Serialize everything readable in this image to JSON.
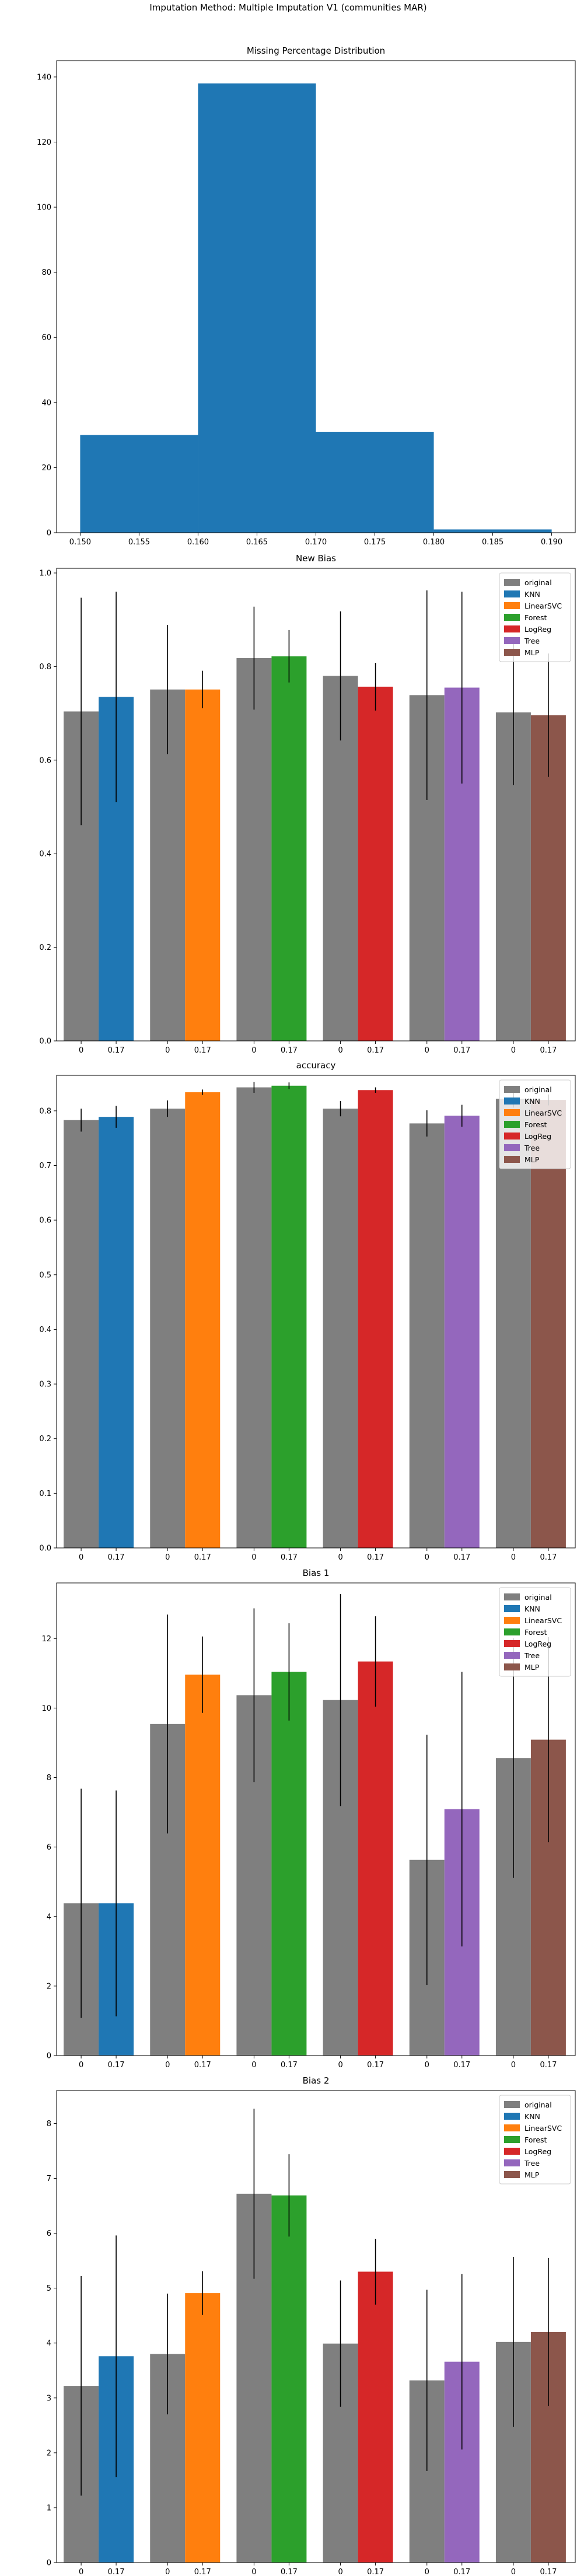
{
  "figure": {
    "suptitle": "Imputation Method: Multiple Imputation V1 (communities MAR)"
  },
  "colors": {
    "original": "#7f7f7f",
    "KNN": "#1f77b4",
    "LinearSVC": "#ff7f0e",
    "Forest": "#2ca02c",
    "LogReg": "#d62728",
    "Tree": "#9467bd",
    "MLP": "#8c564b"
  },
  "chart_data": [
    {
      "type": "bar",
      "subtype": "histogram",
      "title": "Missing Percentage Distribution",
      "xlabel": "",
      "ylabel": "",
      "bins": [
        {
          "start": 0.15,
          "end": 0.16,
          "count": 30
        },
        {
          "start": 0.16,
          "end": 0.17,
          "count": 138
        },
        {
          "start": 0.17,
          "end": 0.18,
          "count": 31
        },
        {
          "start": 0.18,
          "end": 0.19,
          "count": 1
        }
      ],
      "xlim": [
        0.148,
        0.192
      ],
      "ylim": [
        0,
        145
      ],
      "xticks": [
        0.15,
        0.155,
        0.16,
        0.165,
        0.17,
        0.175,
        0.18,
        0.185,
        0.19
      ],
      "xtick_labels": [
        "0.150",
        "0.155",
        "0.160",
        "0.165",
        "0.170",
        "0.175",
        "0.180",
        "0.185",
        "0.190"
      ],
      "yticks": [
        0,
        20,
        40,
        60,
        80,
        100,
        120,
        140
      ],
      "color": "#1f77b4",
      "grid": false
    },
    {
      "type": "bar",
      "title": "New Bias",
      "ylim": [
        0,
        1.01
      ],
      "yticks": [
        0.0,
        0.2,
        0.4,
        0.6,
        0.8,
        1.0
      ],
      "ytick_labels": [
        "0.0",
        "0.2",
        "0.4",
        "0.6",
        "0.8",
        "1.0"
      ],
      "legend": "top-right",
      "groups": [
        {
          "classifier": "KNN",
          "categories": [
            "0",
            "0.17"
          ],
          "values": [
            0.704,
            0.735
          ],
          "errors": [
            0.243,
            0.225
          ]
        },
        {
          "classifier": "LinearSVC",
          "categories": [
            "0",
            "0.17"
          ],
          "values": [
            0.751,
            0.751
          ],
          "errors": [
            0.138,
            0.04
          ]
        },
        {
          "classifier": "Forest",
          "categories": [
            "0",
            "0.17"
          ],
          "values": [
            0.818,
            0.822
          ],
          "errors": [
            0.11,
            0.056
          ]
        },
        {
          "classifier": "LogReg",
          "categories": [
            "0",
            "0.17"
          ],
          "values": [
            0.78,
            0.757
          ],
          "errors": [
            0.138,
            0.051
          ]
        },
        {
          "classifier": "Tree",
          "categories": [
            "0",
            "0.17"
          ],
          "values": [
            0.739,
            0.755
          ],
          "errors": [
            0.224,
            0.205
          ]
        },
        {
          "classifier": "MLP",
          "categories": [
            "0",
            "0.17"
          ],
          "values": [
            0.702,
            0.696
          ],
          "errors": [
            0.155,
            0.132
          ]
        }
      ]
    },
    {
      "type": "bar",
      "title": "accuracy",
      "ylim": [
        0,
        0.865
      ],
      "yticks": [
        0.0,
        0.1,
        0.2,
        0.3,
        0.4,
        0.5,
        0.6,
        0.7,
        0.8
      ],
      "ytick_labels": [
        "0.0",
        "0.1",
        "0.2",
        "0.3",
        "0.4",
        "0.5",
        "0.6",
        "0.7",
        "0.8"
      ],
      "legend": "top-right",
      "groups": [
        {
          "classifier": "KNN",
          "categories": [
            "0",
            "0.17"
          ],
          "values": [
            0.783,
            0.789
          ],
          "errors": [
            0.021,
            0.02
          ]
        },
        {
          "classifier": "LinearSVC",
          "categories": [
            "0",
            "0.17"
          ],
          "values": [
            0.804,
            0.834
          ],
          "errors": [
            0.015,
            0.005
          ]
        },
        {
          "classifier": "Forest",
          "categories": [
            "0",
            "0.17"
          ],
          "values": [
            0.843,
            0.846
          ],
          "errors": [
            0.01,
            0.006
          ]
        },
        {
          "classifier": "LogReg",
          "categories": [
            "0",
            "0.17"
          ],
          "values": [
            0.804,
            0.838
          ],
          "errors": [
            0.014,
            0.005
          ]
        },
        {
          "classifier": "Tree",
          "categories": [
            "0",
            "0.17"
          ],
          "values": [
            0.777,
            0.791
          ],
          "errors": [
            0.024,
            0.02
          ]
        },
        {
          "classifier": "MLP",
          "categories": [
            "0",
            "0.17"
          ],
          "values": [
            0.822,
            0.82
          ],
          "errors": [
            0.016,
            0.01
          ]
        }
      ]
    },
    {
      "type": "bar",
      "title": "Bias 1",
      "ylim": [
        0,
        13.6
      ],
      "yticks": [
        0,
        2,
        4,
        6,
        8,
        10,
        12
      ],
      "ytick_labels": [
        "0",
        "2",
        "4",
        "6",
        "8",
        "10",
        "12"
      ],
      "legend": "top-right",
      "groups": [
        {
          "classifier": "KNN",
          "categories": [
            "0",
            "0.17"
          ],
          "values": [
            4.38,
            4.38
          ],
          "errors": [
            3.3,
            3.25
          ]
        },
        {
          "classifier": "LinearSVC",
          "categories": [
            "0",
            "0.17"
          ],
          "values": [
            9.54,
            10.96
          ],
          "errors": [
            3.15,
            1.1
          ]
        },
        {
          "classifier": "Forest",
          "categories": [
            "0",
            "0.17"
          ],
          "values": [
            10.37,
            11.04
          ],
          "errors": [
            2.5,
            1.4
          ]
        },
        {
          "classifier": "LogReg",
          "categories": [
            "0",
            "0.17"
          ],
          "values": [
            10.23,
            11.34
          ],
          "errors": [
            3.05,
            1.3
          ]
        },
        {
          "classifier": "Tree",
          "categories": [
            "0",
            "0.17"
          ],
          "values": [
            5.63,
            7.09
          ],
          "errors": [
            3.6,
            3.95
          ]
        },
        {
          "classifier": "MLP",
          "categories": [
            "0",
            "0.17"
          ],
          "values": [
            8.56,
            9.09
          ],
          "errors": [
            3.45,
            2.95
          ]
        }
      ]
    },
    {
      "type": "bar",
      "title": "Bias 2",
      "ylim": [
        0,
        8.6
      ],
      "yticks": [
        0,
        1,
        2,
        3,
        4,
        5,
        6,
        7,
        8
      ],
      "ytick_labels": [
        "0",
        "1",
        "2",
        "3",
        "4",
        "5",
        "6",
        "7",
        "8"
      ],
      "legend": "top-right",
      "groups": [
        {
          "classifier": "KNN",
          "categories": [
            "0",
            "0.17"
          ],
          "values": [
            3.22,
            3.76
          ],
          "errors": [
            2.0,
            2.2
          ]
        },
        {
          "classifier": "LinearSVC",
          "categories": [
            "0",
            "0.17"
          ],
          "values": [
            3.8,
            4.91
          ],
          "errors": [
            1.1,
            0.4
          ]
        },
        {
          "classifier": "Forest",
          "categories": [
            "0",
            "0.17"
          ],
          "values": [
            6.72,
            6.69
          ],
          "errors": [
            1.55,
            0.75
          ]
        },
        {
          "classifier": "LogReg",
          "categories": [
            "0",
            "0.17"
          ],
          "values": [
            3.99,
            5.3
          ],
          "errors": [
            1.15,
            0.6
          ]
        },
        {
          "classifier": "Tree",
          "categories": [
            "0",
            "0.17"
          ],
          "values": [
            3.32,
            3.66
          ],
          "errors": [
            1.65,
            1.6
          ]
        },
        {
          "classifier": "MLP",
          "categories": [
            "0",
            "0.17"
          ],
          "values": [
            4.02,
            4.2
          ],
          "errors": [
            1.55,
            1.35
          ]
        }
      ]
    }
  ],
  "legend_entries": [
    "original",
    "KNN",
    "LinearSVC",
    "Forest",
    "LogReg",
    "Tree",
    "MLP"
  ]
}
